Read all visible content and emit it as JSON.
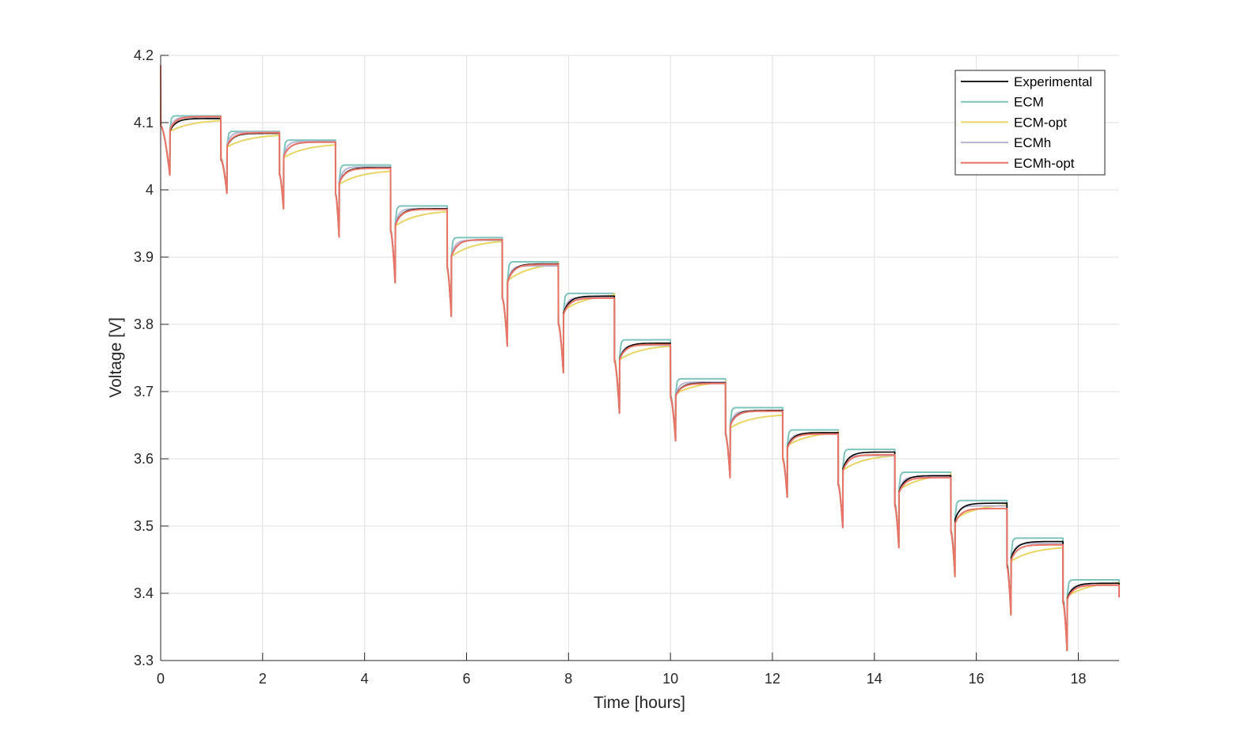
{
  "chart_data": {
    "type": "line",
    "title": "",
    "xlabel": "Time [hours]",
    "ylabel": "Voltage [V]",
    "xlim": [
      0,
      18.8
    ],
    "ylim": [
      3.3,
      4.2
    ],
    "xticks": [
      0,
      2,
      4,
      6,
      8,
      10,
      12,
      14,
      16,
      18
    ],
    "xtick_labels": [
      "0",
      "2",
      "4",
      "6",
      "8",
      "10",
      "12",
      "14",
      "16",
      "18"
    ],
    "yticks": [
      3.3,
      3.4,
      3.5,
      3.6,
      3.7,
      3.8,
      3.9,
      4.0,
      4.1,
      4.2
    ],
    "ytick_labels": [
      "3.3",
      "3.4",
      "3.5",
      "3.6",
      "3.7",
      "3.8",
      "3.9",
      "4",
      "4.1",
      "4.2"
    ],
    "grid": true,
    "legend_position": "top-right",
    "initial_voltage": 4.185,
    "pulses": [
      {
        "start": 0.0,
        "end": 0.18,
        "min": 4.022,
        "rest": [
          4.106,
          4.11,
          4.105,
          4.108,
          4.109
        ]
      },
      {
        "start": 1.18,
        "end": 1.3,
        "min": 3.995,
        "rest": [
          4.084,
          4.087,
          4.083,
          4.086,
          4.085
        ]
      },
      {
        "start": 2.33,
        "end": 2.41,
        "min": 3.972,
        "rest": [
          4.071,
          4.074,
          4.069,
          4.072,
          4.071
        ]
      },
      {
        "start": 3.43,
        "end": 3.5,
        "min": 3.93,
        "rest": [
          4.033,
          4.037,
          4.03,
          4.034,
          4.032
        ]
      },
      {
        "start": 4.51,
        "end": 4.6,
        "min": 3.862,
        "rest": [
          3.972,
          3.976,
          3.97,
          3.972,
          3.971
        ]
      },
      {
        "start": 5.62,
        "end": 5.7,
        "min": 3.812,
        "rest": [
          3.926,
          3.929,
          3.926,
          3.925,
          3.926
        ]
      },
      {
        "start": 6.7,
        "end": 6.8,
        "min": 3.768,
        "rest": [
          3.89,
          3.893,
          3.892,
          3.887,
          3.889
        ]
      },
      {
        "start": 7.8,
        "end": 7.9,
        "min": 3.728,
        "rest": [
          3.842,
          3.846,
          3.846,
          3.84,
          3.839
        ]
      },
      {
        "start": 8.9,
        "end": 9.0,
        "min": 3.668,
        "rest": [
          3.772,
          3.777,
          3.77,
          3.769,
          3.77
        ]
      },
      {
        "start": 10.0,
        "end": 10.1,
        "min": 3.627,
        "rest": [
          3.713,
          3.719,
          3.716,
          3.714,
          3.712
        ]
      },
      {
        "start": 11.08,
        "end": 11.17,
        "min": 3.572,
        "rest": [
          3.672,
          3.676,
          3.667,
          3.671,
          3.671
        ]
      },
      {
        "start": 12.2,
        "end": 12.29,
        "min": 3.543,
        "rest": [
          3.639,
          3.643,
          3.641,
          3.637,
          3.637
        ]
      },
      {
        "start": 13.29,
        "end": 13.38,
        "min": 3.498,
        "rest": [
          3.61,
          3.614,
          3.607,
          3.605,
          3.606
        ]
      },
      {
        "start": 14.4,
        "end": 14.48,
        "min": 3.468,
        "rest": [
          3.575,
          3.58,
          3.578,
          3.573,
          3.572
        ]
      },
      {
        "start": 15.5,
        "end": 15.58,
        "min": 3.425,
        "rest": [
          3.534,
          3.538,
          3.534,
          3.53,
          3.526
        ]
      },
      {
        "start": 16.6,
        "end": 16.68,
        "min": 3.368,
        "rest": [
          3.477,
          3.482,
          3.47,
          3.474,
          3.472
        ]
      },
      {
        "start": 17.7,
        "end": 17.78,
        "min": 3.315,
        "rest": [
          3.415,
          3.42,
          3.418,
          3.412,
          3.412
        ]
      }
    ],
    "series": [
      {
        "name": "Experimental",
        "color": "#000000",
        "recovery": "fast"
      },
      {
        "name": "ECM",
        "color": "#7ec4bd",
        "recovery": "instant"
      },
      {
        "name": "ECM-opt",
        "color": "#e9d566",
        "recovery": "slow"
      },
      {
        "name": "ECMh",
        "color": "#b6b4cf",
        "recovery": "medium"
      },
      {
        "name": "ECMh-opt",
        "color": "#ea7467",
        "recovery": "fast"
      }
    ]
  }
}
